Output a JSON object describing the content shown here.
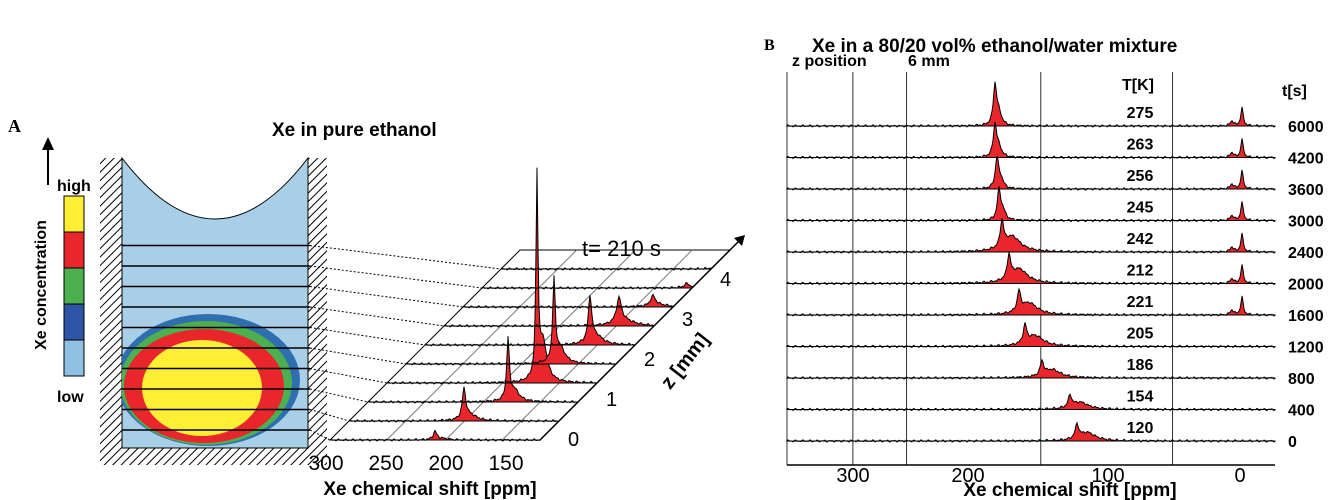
{
  "panel_a": {
    "label": "A",
    "title": "Xe in pure ethanol",
    "legend_axis": "Xe concentration",
    "legend_high": "high",
    "legend_low": "low",
    "time_label": "t= 210 s",
    "x_label": "Xe chemical shift [ppm]",
    "x_ticks": [
      300,
      250,
      200,
      150
    ],
    "z_label": "z [mm]",
    "z_ticks": [
      0,
      1,
      2,
      3,
      4
    ]
  },
  "panel_b": {
    "label": "B",
    "title": "Xe in a 80/20 vol% ethanol/water mixture",
    "z_position": "z position",
    "z_value": "6 mm",
    "temp_header": "T[K]",
    "time_header": "t[s]",
    "x_label": "Xe chemical shift [ppm]",
    "x_ticks": [
      300,
      200,
      100,
      0
    ],
    "rows": [
      {
        "temperature": 275,
        "time": 6000
      },
      {
        "temperature": 263,
        "time": 4200
      },
      {
        "temperature": 256,
        "time": 3600
      },
      {
        "temperature": 245,
        "time": 3000
      },
      {
        "temperature": 242,
        "time": 2400
      },
      {
        "temperature": 212,
        "time": 2000
      },
      {
        "temperature": 221,
        "time": 1600
      },
      {
        "temperature": 205,
        "time": 1200
      },
      {
        "temperature": 186,
        "time": 800
      },
      {
        "temperature": 154,
        "time": 400
      },
      {
        "temperature": 120,
        "time": 0
      }
    ]
  }
}
